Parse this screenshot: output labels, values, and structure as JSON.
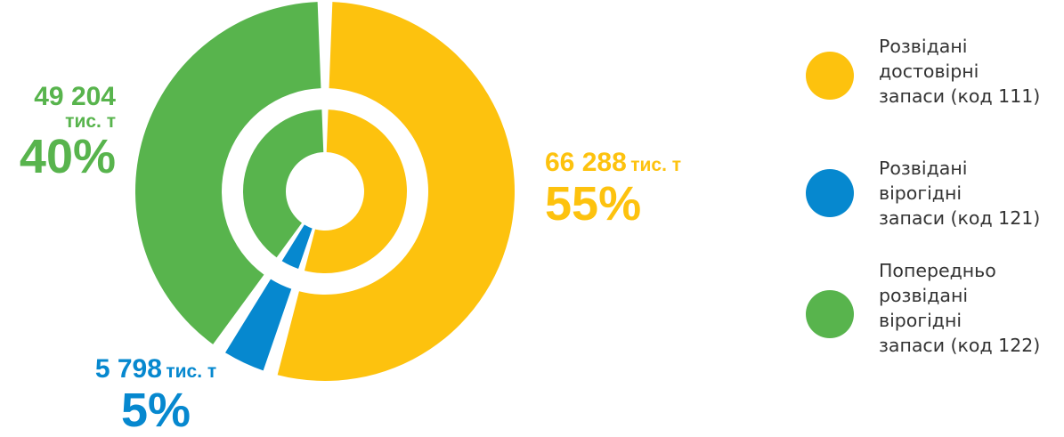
{
  "chart_data": {
    "type": "pie",
    "series": [
      {
        "name": "Розвідані достовірні запаси (код 111)",
        "value": 66288,
        "unit": "тис. т",
        "amount_label": "66 288",
        "percent_label": "55%",
        "color": "#FDC20E"
      },
      {
        "name": "Розвідані вірогідні запаси (код 121)",
        "value": 5798,
        "unit": "тис. т",
        "amount_label": "5 798",
        "percent_label": "5%",
        "color": "#0688CF"
      },
      {
        "name": "Попередньо розвідані вірогідні запаси (код 122)",
        "value": 49204,
        "unit": "тис. т",
        "amount_label": "49 204",
        "percent_label": "40%",
        "color": "#58B44D"
      }
    ],
    "legend": {
      "position": "right",
      "items": [
        {
          "lines": [
            "Розвідані",
            "достовірні",
            "запаси (код 111)"
          ],
          "color": "#FDC20E",
          "icon": "yellow-circle"
        },
        {
          "lines": [
            "Розвідані",
            "вірогідні",
            "запаси (код 121)"
          ],
          "color": "#0688CF",
          "icon": "blue-circle"
        },
        {
          "lines": [
            "Попередньо",
            "розвідані",
            "вірогідні",
            "запаси (код 122)"
          ],
          "color": "#58B44D",
          "icon": "green-circle"
        }
      ]
    }
  }
}
